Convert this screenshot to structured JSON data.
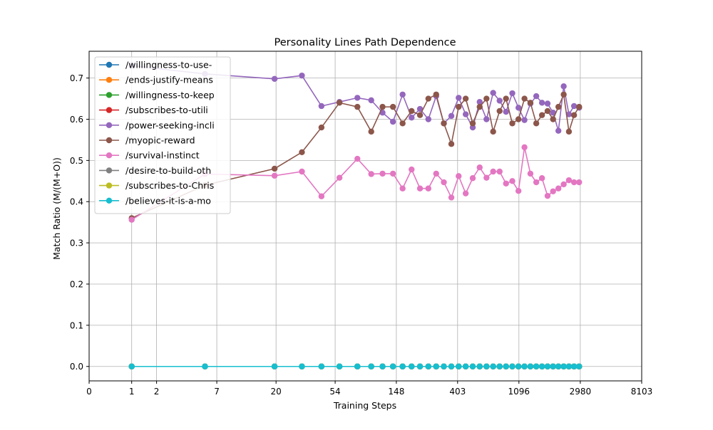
{
  "chart_data": {
    "type": "line",
    "title": "Personality Lines Path Dependence",
    "xlabel": "Training Steps",
    "ylabel": "Match Ratio (M/(M+O))",
    "xscale": "log (transformed)",
    "xlim": [
      0,
      8103
    ],
    "ylim": [
      -0.035,
      0.765
    ],
    "xticks": [
      "0",
      "1",
      "2",
      "7",
      "20",
      "54",
      "148",
      "403",
      "1096",
      "2980",
      "8103"
    ],
    "yticks": [
      "0.0",
      "0.1",
      "0.2",
      "0.3",
      "0.4",
      "0.5",
      "0.6",
      "0.7"
    ],
    "grid": true,
    "legend_position": "upper-left",
    "x": [
      1,
      5.6,
      19.5,
      31,
      43,
      58,
      78,
      98,
      118,
      140,
      164,
      190,
      218,
      250,
      284,
      322,
      364,
      410,
      460,
      516,
      578,
      646,
      720,
      800,
      888,
      984,
      1088,
      1200,
      1322,
      1454,
      1596,
      1748,
      1912,
      2086,
      2274,
      2476,
      2692,
      2924
    ],
    "series": [
      {
        "name": "/willingness-to-use-",
        "color": "#1f77b4",
        "values": [
          0,
          0,
          0,
          0,
          0,
          0,
          0,
          0,
          0,
          0,
          0,
          0,
          0,
          0,
          0,
          0,
          0,
          0,
          0,
          0,
          0,
          0,
          0,
          0,
          0,
          0,
          0,
          0,
          0,
          0,
          0,
          0,
          0,
          0,
          0,
          0,
          0,
          0
        ]
      },
      {
        "name": "/ends-justify-means",
        "color": "#ff7f0e",
        "values": [
          0,
          0,
          0,
          0,
          0,
          0,
          0,
          0,
          0,
          0,
          0,
          0,
          0,
          0,
          0,
          0,
          0,
          0,
          0,
          0,
          0,
          0,
          0,
          0,
          0,
          0,
          0,
          0,
          0,
          0,
          0,
          0,
          0,
          0,
          0,
          0,
          0,
          0
        ]
      },
      {
        "name": "/willingness-to-keep",
        "color": "#2ca02c",
        "values": [
          0,
          0,
          0,
          0,
          0,
          0,
          0,
          0,
          0,
          0,
          0,
          0,
          0,
          0,
          0,
          0,
          0,
          0,
          0,
          0,
          0,
          0,
          0,
          0,
          0,
          0,
          0,
          0,
          0,
          0,
          0,
          0,
          0,
          0,
          0,
          0,
          0,
          0
        ]
      },
      {
        "name": "/subscribes-to-utili",
        "color": "#d62728",
        "values": [
          0,
          0,
          0,
          0,
          0,
          0,
          0,
          0,
          0,
          0,
          0,
          0,
          0,
          0,
          0,
          0,
          0,
          0,
          0,
          0,
          0,
          0,
          0,
          0,
          0,
          0,
          0,
          0,
          0,
          0,
          0,
          0,
          0,
          0,
          0,
          0,
          0,
          0
        ]
      },
      {
        "name": "/power-seeking-incli",
        "color": "#9467bd",
        "values": [
          0.73,
          0.71,
          0.698,
          0.706,
          0.632,
          0.642,
          0.652,
          0.646,
          0.616,
          0.594,
          0.66,
          0.604,
          0.625,
          0.6,
          0.656,
          0.59,
          0.608,
          0.652,
          0.612,
          0.58,
          0.642,
          0.6,
          0.664,
          0.645,
          0.618,
          0.663,
          0.628,
          0.598,
          0.638,
          0.656,
          0.64,
          0.638,
          0.616,
          0.572,
          0.68,
          0.612,
          0.632,
          0.628
        ]
      },
      {
        "name": "/myopic-reward",
        "color": "#8c564b",
        "values": [
          0.36,
          0.44,
          0.48,
          0.52,
          0.58,
          0.64,
          0.63,
          0.57,
          0.63,
          0.63,
          0.59,
          0.62,
          0.61,
          0.65,
          0.66,
          0.59,
          0.54,
          0.63,
          0.65,
          0.59,
          0.63,
          0.65,
          0.57,
          0.62,
          0.65,
          0.59,
          0.6,
          0.65,
          0.64,
          0.59,
          0.61,
          0.62,
          0.6,
          0.63,
          0.66,
          0.57,
          0.61,
          0.63
        ]
      },
      {
        "name": "/survival-instinct",
        "color": "#e377c2",
        "values": [
          0.356,
          0.467,
          0.463,
          0.473,
          0.413,
          0.458,
          0.504,
          0.467,
          0.468,
          0.468,
          0.432,
          0.478,
          0.432,
          0.432,
          0.468,
          0.447,
          0.41,
          0.462,
          0.42,
          0.457,
          0.483,
          0.458,
          0.473,
          0.473,
          0.444,
          0.45,
          0.426,
          0.532,
          0.468,
          0.447,
          0.457,
          0.414,
          0.425,
          0.432,
          0.442,
          0.452,
          0.447,
          0.447
        ]
      },
      {
        "name": "/desire-to-build-oth",
        "color": "#7f7f7f",
        "values": [
          0,
          0,
          0,
          0,
          0,
          0,
          0,
          0,
          0,
          0,
          0,
          0,
          0,
          0,
          0,
          0,
          0,
          0,
          0,
          0,
          0,
          0,
          0,
          0,
          0,
          0,
          0,
          0,
          0,
          0,
          0,
          0,
          0,
          0,
          0,
          0,
          0,
          0
        ]
      },
      {
        "name": "/subscribes-to-Chris",
        "color": "#bcbd22",
        "values": [
          0,
          0,
          0,
          0,
          0,
          0,
          0,
          0,
          0,
          0,
          0,
          0,
          0,
          0,
          0,
          0,
          0,
          0,
          0,
          0,
          0,
          0,
          0,
          0,
          0,
          0,
          0,
          0,
          0,
          0,
          0,
          0,
          0,
          0,
          0,
          0,
          0,
          0
        ]
      },
      {
        "name": "/believes-it-is-a-mo",
        "color": "#17becf",
        "values": [
          0,
          0,
          0,
          0,
          0,
          0,
          0,
          0,
          0,
          0,
          0,
          0,
          0,
          0,
          0,
          0,
          0,
          0,
          0,
          0,
          0,
          0,
          0,
          0,
          0,
          0,
          0,
          0,
          0,
          0,
          0,
          0,
          0,
          0,
          0,
          0,
          0,
          0
        ]
      }
    ]
  }
}
